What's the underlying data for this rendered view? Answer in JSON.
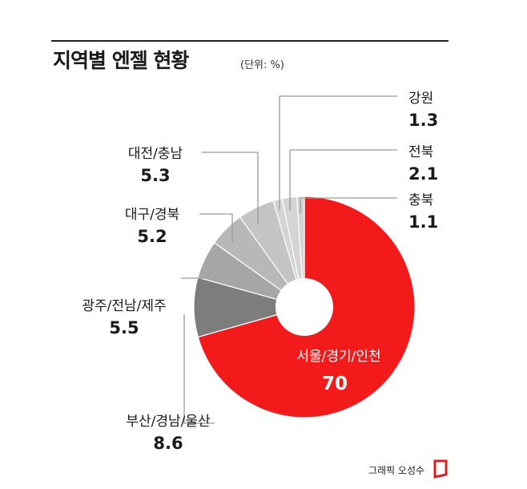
{
  "header": {
    "title": "지역별 엔젤 현황",
    "unit": "(단위: %)"
  },
  "credit": "그래픽 오성수",
  "colors": {
    "main": "#f31a1b",
    "busan": "#7d7d7d",
    "gwangju": "#a6a6a6",
    "daegu": "#b8b8b8",
    "daejeon": "#c4c4c4",
    "minor": "#d4d4d4",
    "line": "#9a9a9a",
    "center_text": "#ffffff"
  },
  "chart_data": {
    "type": "pie",
    "title": "지역별 엔젤 현황",
    "unit": "%",
    "categories": [
      "서울/경기/인천",
      "부산/경남/울산",
      "광주/전남/제주",
      "대구/경북",
      "대전/충남",
      "강원",
      "전북",
      "충북"
    ],
    "values": [
      70,
      8.6,
      5.5,
      5.2,
      5.3,
      1.3,
      2.1,
      1.1
    ],
    "value_labels": [
      "70",
      "8.6",
      "5.5",
      "5.2",
      "5.3",
      "1.3",
      "2.1",
      "1.1"
    ]
  }
}
